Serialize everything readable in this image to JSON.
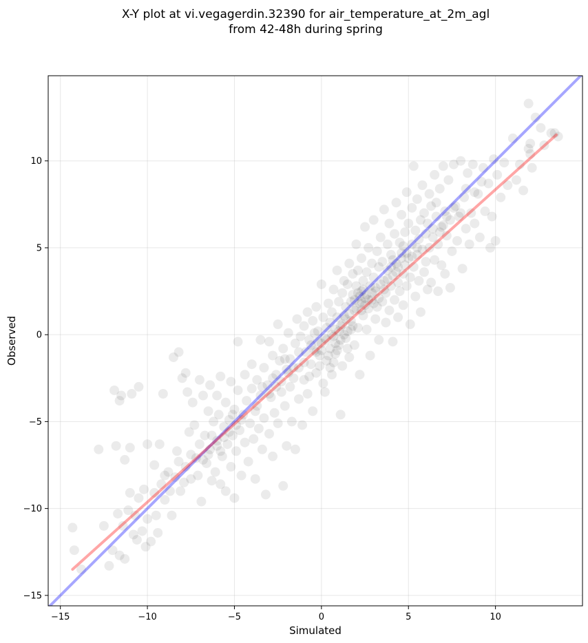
{
  "chart_data": {
    "type": "scatter",
    "title": "X-Y plot at vi.vegagerdin.32390 for air_temperature_at_2m_agl",
    "subtitle": "from 42-48h during spring",
    "xlabel": "Simulated",
    "ylabel": "Observed",
    "xlim": [
      -15.7,
      15.0
    ],
    "ylim": [
      -15.6,
      14.9
    ],
    "xticks": [
      -15,
      -10,
      -5,
      0,
      5,
      10
    ],
    "yticks": [
      -15,
      -10,
      -5,
      0,
      5,
      10
    ],
    "xtick_labels": [
      "−15",
      "−10",
      "−5",
      "0",
      "5",
      "10"
    ],
    "ytick_labels": [
      "−15",
      "−10",
      "−5",
      "0",
      "5",
      "10"
    ],
    "grid": true,
    "marker_color": "#000000",
    "marker_alpha": 0.08,
    "identity_line": {
      "color": "#0000ff",
      "alpha": 0.35,
      "x": [
        -15.7,
        15.0
      ],
      "y": [
        -15.7,
        15.0
      ]
    },
    "fit_line": {
      "color": "#ff0000",
      "alpha": 0.35,
      "x": [
        -14.3,
        13.5
      ],
      "y": [
        -13.5,
        11.5
      ]
    },
    "points": [
      [
        -14.3,
        -11.1
      ],
      [
        -14.2,
        -12.4
      ],
      [
        -13.8,
        -13.5
      ],
      [
        -12.8,
        -6.6
      ],
      [
        -12.5,
        -11.0
      ],
      [
        -12.2,
        -13.3
      ],
      [
        -12.0,
        -12.4
      ],
      [
        -11.9,
        -3.2
      ],
      [
        -11.8,
        -6.4
      ],
      [
        -11.7,
        -10.3
      ],
      [
        -11.6,
        -12.7
      ],
      [
        -11.6,
        -3.8
      ],
      [
        -11.5,
        -3.5
      ],
      [
        -11.4,
        -11.0
      ],
      [
        -11.3,
        -12.9
      ],
      [
        -11.3,
        -7.2
      ],
      [
        -11.1,
        -10.1
      ],
      [
        -11.0,
        -6.5
      ],
      [
        -11.0,
        -9.1
      ],
      [
        -10.9,
        -3.4
      ],
      [
        -10.8,
        -11.5
      ],
      [
        -10.7,
        -10.4
      ],
      [
        -10.6,
        -11.8
      ],
      [
        -10.5,
        -3.0
      ],
      [
        -10.5,
        -9.4
      ],
      [
        -10.3,
        -11.3
      ],
      [
        -10.2,
        -8.9
      ],
      [
        -10.1,
        -12.2
      ],
      [
        -10.0,
        -6.3
      ],
      [
        -10.0,
        -10.6
      ],
      [
        -9.8,
        -11.9
      ],
      [
        -9.6,
        -9.1
      ],
      [
        -9.6,
        -7.5
      ],
      [
        -9.5,
        -10.4
      ],
      [
        -9.4,
        -11.4
      ],
      [
        -9.3,
        -6.3
      ],
      [
        -9.2,
        -8.6
      ],
      [
        -9.1,
        -3.4
      ],
      [
        -9.0,
        -8.1
      ],
      [
        -9.0,
        -9.5
      ],
      [
        -8.8,
        -7.9
      ],
      [
        -8.7,
        -9.0
      ],
      [
        -8.6,
        -10.4
      ],
      [
        -8.5,
        -1.3
      ],
      [
        -8.4,
        -8.2
      ],
      [
        -8.3,
        -6.7
      ],
      [
        -8.2,
        -1.0
      ],
      [
        -8.2,
        -7.3
      ],
      [
        -8.1,
        -9.0
      ],
      [
        -8.0,
        -2.5
      ],
      [
        -7.9,
        -8.5
      ],
      [
        -7.8,
        -2.2
      ],
      [
        -7.8,
        -7.6
      ],
      [
        -7.7,
        -3.3
      ],
      [
        -7.6,
        -5.6
      ],
      [
        -7.5,
        -8.3
      ],
      [
        -7.5,
        -6.9
      ],
      [
        -7.4,
        -3.9
      ],
      [
        -7.3,
        -5.2
      ],
      [
        -7.2,
        -7.1
      ],
      [
        -7.1,
        -8.1
      ],
      [
        -7.0,
        -2.6
      ],
      [
        -7.0,
        -6.3
      ],
      [
        -6.9,
        -9.6
      ],
      [
        -6.8,
        -3.5
      ],
      [
        -6.7,
        -5.8
      ],
      [
        -6.6,
        -7.4
      ],
      [
        -6.5,
        -4.4
      ],
      [
        -6.4,
        -6.6
      ],
      [
        -6.4,
        -2.9
      ],
      [
        -6.3,
        -8.4
      ],
      [
        -6.2,
        -5.0
      ],
      [
        -6.1,
        -7.9
      ],
      [
        -6.0,
        -3.5
      ],
      [
        -6.0,
        -6.1
      ],
      [
        -5.9,
        -4.6
      ],
      [
        -5.8,
        -8.6
      ],
      [
        -5.8,
        -2.4
      ],
      [
        -5.7,
        -7.0
      ],
      [
        -5.6,
        -5.3
      ],
      [
        -5.5,
        -9.0
      ],
      [
        -5.5,
        -3.9
      ],
      [
        -5.4,
        -6.3
      ],
      [
        -5.3,
        -4.9
      ],
      [
        -5.2,
        -7.6
      ],
      [
        -5.2,
        -2.7
      ],
      [
        -5.1,
        -5.8
      ],
      [
        -5.0,
        -9.4
      ],
      [
        -5.0,
        -4.3
      ],
      [
        -4.9,
        -6.7
      ],
      [
        -4.8,
        -0.4
      ],
      [
        -4.8,
        -3.2
      ],
      [
        -4.7,
        -5.5
      ],
      [
        -4.6,
        -8.1
      ],
      [
        -4.5,
        -4.6
      ],
      [
        -4.4,
        -2.3
      ],
      [
        -4.4,
        -6.2
      ],
      [
        -4.3,
        -3.8
      ],
      [
        -4.2,
        -7.3
      ],
      [
        -4.1,
        -5.1
      ],
      [
        -4.0,
        -1.7
      ],
      [
        -4.0,
        -3.1
      ],
      [
        -3.9,
        -6.0
      ],
      [
        -3.8,
        -4.4
      ],
      [
        -3.8,
        -8.3
      ],
      [
        -3.7,
        -2.6
      ],
      [
        -3.6,
        -5.4
      ],
      [
        -3.5,
        -0.3
      ],
      [
        -3.5,
        -3.5
      ],
      [
        -3.4,
        -6.6
      ],
      [
        -3.3,
        -1.9
      ],
      [
        -3.3,
        -4.8
      ],
      [
        -3.2,
        -9.2
      ],
      [
        -3.1,
        -2.9
      ],
      [
        -3.0,
        -5.7
      ],
      [
        -3.0,
        -0.4
      ],
      [
        -2.9,
        -3.6
      ],
      [
        -2.8,
        -7.0
      ],
      [
        -2.8,
        -1.2
      ],
      [
        -2.7,
        -4.5
      ],
      [
        -2.6,
        -2.3
      ],
      [
        -2.5,
        0.6
      ],
      [
        -2.5,
        -5.1
      ],
      [
        -2.4,
        -1.5
      ],
      [
        -2.3,
        -3.3
      ],
      [
        -2.2,
        -8.7
      ],
      [
        -2.2,
        -0.8
      ],
      [
        -2.1,
        -4.1
      ],
      [
        -2.0,
        -2.0
      ],
      [
        -2.0,
        -6.4
      ],
      [
        -1.9,
        0.1
      ],
      [
        -1.8,
        -3.0
      ],
      [
        -1.8,
        -1.4
      ],
      [
        -1.7,
        -5.0
      ],
      [
        -1.6,
        -2.5
      ],
      [
        -1.5,
        -0.5
      ],
      [
        -1.5,
        -6.6
      ],
      [
        -1.4,
        0.9
      ],
      [
        -1.3,
        -3.7
      ],
      [
        -1.3,
        -1.9
      ],
      [
        -1.2,
        -0.1
      ],
      [
        -1.1,
        -5.2
      ],
      [
        -1.0,
        -2.6
      ],
      [
        -1.0,
        0.5
      ],
      [
        -0.9,
        -1.0
      ],
      [
        -0.8,
        1.3
      ],
      [
        -0.8,
        -3.4
      ],
      [
        -0.7,
        -0.3
      ],
      [
        -0.6,
        -1.7
      ],
      [
        -0.5,
        0.8
      ],
      [
        -0.5,
        -4.4
      ],
      [
        -0.4,
        -0.9
      ],
      [
        -0.3,
        1.6
      ],
      [
        -0.3,
        -2.2
      ],
      [
        -0.2,
        0.2
      ],
      [
        -0.1,
        -1.2
      ],
      [
        0.0,
        2.9
      ],
      [
        0.0,
        -0.5
      ],
      [
        0.1,
        1.0
      ],
      [
        0.1,
        -2.8
      ],
      [
        0.2,
        -0.2
      ],
      [
        0.3,
        0.4
      ],
      [
        0.3,
        -1.5
      ],
      [
        0.4,
        1.8
      ],
      [
        0.5,
        -0.8
      ],
      [
        0.5,
        0.7
      ],
      [
        0.6,
        -2.3
      ],
      [
        0.6,
        1.3
      ],
      [
        0.7,
        -0.1
      ],
      [
        0.7,
        2.6
      ],
      [
        0.8,
        -1.1
      ],
      [
        0.8,
        0.3
      ],
      [
        0.9,
        3.7
      ],
      [
        0.9,
        1.0
      ],
      [
        1.0,
        -0.6
      ],
      [
        1.0,
        1.9
      ],
      [
        1.1,
        -4.6
      ],
      [
        1.1,
        0.5
      ],
      [
        1.2,
        2.4
      ],
      [
        1.2,
        -1.8
      ],
      [
        1.3,
        1.1
      ],
      [
        1.3,
        3.1
      ],
      [
        1.4,
        -0.2
      ],
      [
        1.4,
        1.6
      ],
      [
        1.5,
        2.9
      ],
      [
        1.5,
        0.2
      ],
      [
        1.6,
        4.1
      ],
      [
        1.6,
        -1.3
      ],
      [
        1.7,
        1.9
      ],
      [
        1.7,
        0.8
      ],
      [
        1.8,
        3.5
      ],
      [
        1.8,
        2.3
      ],
      [
        1.9,
        -0.6
      ],
      [
        1.9,
        1.4
      ],
      [
        2.0,
        5.2
      ],
      [
        2.0,
        2.8
      ],
      [
        2.1,
        0.4
      ],
      [
        2.1,
        3.7
      ],
      [
        2.2,
        1.8
      ],
      [
        2.2,
        -2.3
      ],
      [
        2.3,
        2.5
      ],
      [
        2.3,
        4.4
      ],
      [
        2.4,
        1.1
      ],
      [
        2.4,
        3.1
      ],
      [
        2.5,
        6.2
      ],
      [
        2.5,
        2.1
      ],
      [
        2.6,
        0.3
      ],
      [
        2.6,
        3.6
      ],
      [
        2.7,
        1.5
      ],
      [
        2.7,
        5.0
      ],
      [
        2.8,
        2.8
      ],
      [
        2.8,
        -1.2
      ],
      [
        2.9,
        4.1
      ],
      [
        2.9,
        2.0
      ],
      [
        3.0,
        6.6
      ],
      [
        3.0,
        3.3
      ],
      [
        3.1,
        0.9
      ],
      [
        3.1,
        2.5
      ],
      [
        3.2,
        4.8
      ],
      [
        3.2,
        1.6
      ],
      [
        3.3,
        3.9
      ],
      [
        3.3,
        -0.3
      ],
      [
        3.4,
        2.9
      ],
      [
        3.4,
        5.6
      ],
      [
        3.5,
        1.9
      ],
      [
        3.5,
        4.2
      ],
      [
        3.6,
        7.2
      ],
      [
        3.6,
        3.1
      ],
      [
        3.7,
        0.7
      ],
      [
        3.7,
        2.4
      ],
      [
        3.8,
        5.2
      ],
      [
        3.8,
        3.7
      ],
      [
        3.9,
        1.4
      ],
      [
        3.9,
        6.4
      ],
      [
        4.0,
        2.8
      ],
      [
        4.0,
        4.6
      ],
      [
        4.1,
        -0.4
      ],
      [
        4.1,
        3.4
      ],
      [
        4.2,
        5.8
      ],
      [
        4.2,
        2.0
      ],
      [
        4.3,
        7.6
      ],
      [
        4.3,
        4.1
      ],
      [
        4.4,
        3.0
      ],
      [
        4.4,
        1.0
      ],
      [
        4.5,
        5.3
      ],
      [
        4.5,
        2.5
      ],
      [
        4.6,
        4.7
      ],
      [
        4.6,
        6.9
      ],
      [
        4.7,
        3.5
      ],
      [
        4.7,
        1.7
      ],
      [
        4.8,
        5.9
      ],
      [
        4.8,
        4.0
      ],
      [
        4.9,
        8.2
      ],
      [
        4.9,
        2.8
      ],
      [
        5.0,
        6.4
      ],
      [
        5.0,
        4.4
      ],
      [
        5.1,
        3.3
      ],
      [
        5.1,
        0.6
      ],
      [
        5.2,
        7.3
      ],
      [
        5.2,
        5.2
      ],
      [
        5.3,
        9.7
      ],
      [
        5.3,
        3.9
      ],
      [
        5.4,
        6.0
      ],
      [
        5.4,
        2.2
      ],
      [
        5.5,
        4.6
      ],
      [
        5.5,
        7.8
      ],
      [
        5.6,
        5.5
      ],
      [
        5.6,
        3.1
      ],
      [
        5.7,
        6.6
      ],
      [
        5.7,
        1.3
      ],
      [
        5.8,
        4.9
      ],
      [
        5.8,
        8.6
      ],
      [
        5.9,
        3.6
      ],
      [
        5.9,
        7.0
      ],
      [
        6.0,
        5.8
      ],
      [
        6.0,
        4.2
      ],
      [
        6.1,
        6.4
      ],
      [
        6.1,
        2.6
      ],
      [
        6.2,
        8.1
      ],
      [
        6.2,
        5.0
      ],
      [
        6.3,
        3.0
      ],
      [
        6.3,
        7.4
      ],
      [
        6.4,
        5.6
      ],
      [
        6.5,
        9.2
      ],
      [
        6.5,
        4.3
      ],
      [
        6.6,
        6.8
      ],
      [
        6.7,
        2.5
      ],
      [
        6.7,
        5.2
      ],
      [
        6.8,
        8.4
      ],
      [
        6.9,
        6.2
      ],
      [
        6.9,
        4.0
      ],
      [
        7.0,
        9.7
      ],
      [
        7.1,
        7.1
      ],
      [
        7.1,
        3.5
      ],
      [
        7.2,
        5.7
      ],
      [
        7.3,
        8.9
      ],
      [
        7.4,
        6.6
      ],
      [
        7.4,
        2.7
      ],
      [
        7.5,
        4.8
      ],
      [
        7.6,
        9.8
      ],
      [
        7.7,
        7.4
      ],
      [
        7.8,
        5.4
      ],
      [
        7.9,
        6.8
      ],
      [
        8.0,
        10.0
      ],
      [
        8.1,
        3.8
      ],
      [
        8.2,
        7.9
      ],
      [
        8.3,
        6.1
      ],
      [
        8.4,
        9.3
      ],
      [
        8.5,
        5.2
      ],
      [
        8.6,
        7.0
      ],
      [
        8.7,
        9.8
      ],
      [
        8.8,
        6.4
      ],
      [
        9.0,
        8.1
      ],
      [
        9.1,
        5.6
      ],
      [
        9.3,
        9.6
      ],
      [
        9.4,
        7.1
      ],
      [
        9.6,
        8.7
      ],
      [
        9.7,
        5.0
      ],
      [
        9.8,
        6.8
      ],
      [
        9.9,
        10.1
      ],
      [
        10.0,
        5.4
      ],
      [
        10.1,
        9.2
      ],
      [
        10.3,
        7.9
      ],
      [
        10.5,
        9.9
      ],
      [
        10.7,
        8.6
      ],
      [
        11.0,
        11.3
      ],
      [
        11.2,
        8.9
      ],
      [
        11.4,
        9.8
      ],
      [
        11.6,
        8.3
      ],
      [
        11.9,
        10.7
      ],
      [
        12.0,
        11.0
      ],
      [
        12.0,
        10.4
      ],
      [
        12.1,
        9.6
      ],
      [
        11.9,
        13.3
      ],
      [
        12.3,
        12.5
      ],
      [
        12.6,
        11.9
      ],
      [
        12.8,
        10.9
      ],
      [
        13.2,
        11.6
      ],
      [
        13.4,
        11.6
      ],
      [
        13.6,
        11.4
      ],
      [
        0.5,
        -1.9
      ],
      [
        0.2,
        -3.3
      ],
      [
        -0.4,
        0.1
      ],
      [
        1.5,
        -0.8
      ],
      [
        1.8,
        0.5
      ],
      [
        2.3,
        1.4
      ],
      [
        2.6,
        2.3
      ],
      [
        3.0,
        1.8
      ],
      [
        3.3,
        2.1
      ],
      [
        3.6,
        2.6
      ],
      [
        2.2,
        2.2
      ],
      [
        2.4,
        2.6
      ],
      [
        2.5,
        1.7
      ],
      [
        2.7,
        2.0
      ],
      [
        2.9,
        2.4
      ],
      [
        3.1,
        2.7
      ],
      [
        1.9,
        2.0
      ],
      [
        2.0,
        1.5
      ],
      [
        2.1,
        2.4
      ],
      [
        2.3,
        1.9
      ],
      [
        0.0,
        -0.9
      ],
      [
        -0.2,
        -0.4
      ],
      [
        0.3,
        -0.3
      ],
      [
        0.6,
        0.0
      ],
      [
        0.8,
        -0.5
      ],
      [
        1.0,
        0.2
      ],
      [
        1.2,
        0.6
      ],
      [
        1.4,
        0.9
      ],
      [
        1.6,
        1.2
      ],
      [
        1.7,
        0.3
      ],
      [
        -0.6,
        -0.6
      ],
      [
        -0.3,
        -1.0
      ],
      [
        -0.1,
        -1.8
      ],
      [
        0.4,
        -1.2
      ],
      [
        0.7,
        -1.6
      ],
      [
        0.9,
        -0.9
      ],
      [
        1.1,
        -0.3
      ],
      [
        1.3,
        0.0
      ],
      [
        -0.7,
        -2.4
      ],
      [
        -1.0,
        -1.6
      ],
      [
        4.0,
        3.9
      ],
      [
        4.3,
        3.6
      ],
      [
        4.6,
        4.4
      ],
      [
        4.9,
        4.7
      ],
      [
        5.2,
        4.5
      ],
      [
        5.5,
        5.0
      ],
      [
        3.8,
        3.2
      ],
      [
        4.1,
        4.3
      ],
      [
        4.4,
        3.9
      ],
      [
        4.7,
        5.1
      ],
      [
        -5.3,
        -5.6
      ],
      [
        -5.6,
        -5.9
      ],
      [
        -6.0,
        -6.4
      ],
      [
        -6.3,
        -5.8
      ],
      [
        -4.9,
        -5.2
      ],
      [
        -4.6,
        -4.9
      ],
      [
        -5.1,
        -4.6
      ],
      [
        -5.8,
        -6.7
      ],
      [
        -6.5,
        -6.9
      ],
      [
        -6.8,
        -7.2
      ],
      [
        -3.0,
        -3.4
      ],
      [
        -2.6,
        -3.0
      ],
      [
        -2.3,
        -2.7
      ],
      [
        -3.4,
        -3.0
      ],
      [
        -3.7,
        -4.1
      ],
      [
        -1.9,
        -2.2
      ],
      [
        -1.6,
        -1.9
      ],
      [
        -1.3,
        -1.0
      ],
      [
        -2.1,
        -1.4
      ],
      [
        -2.8,
        -2.5
      ],
      [
        6.4,
        6.1
      ],
      [
        6.8,
        5.9
      ],
      [
        7.2,
        6.8
      ],
      [
        7.6,
        7.3
      ],
      [
        8.0,
        7.0
      ],
      [
        8.3,
        8.4
      ],
      [
        8.8,
        8.2
      ],
      [
        9.2,
        8.8
      ],
      [
        6.6,
        7.6
      ],
      [
        7.0,
        6.3
      ]
    ]
  }
}
